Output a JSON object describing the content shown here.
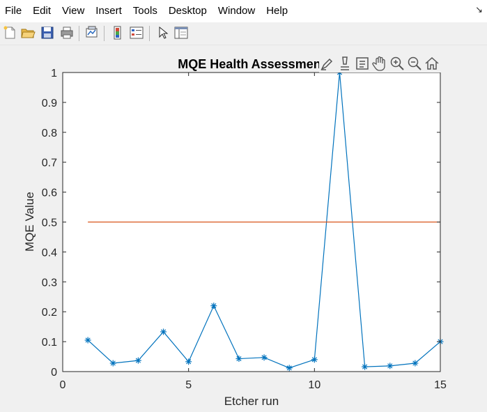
{
  "menubar": {
    "items": [
      "File",
      "Edit",
      "View",
      "Insert",
      "Tools",
      "Desktop",
      "Window",
      "Help"
    ]
  },
  "toolbar": {
    "icons": [
      "new-figure-icon",
      "open-file-icon",
      "save-icon",
      "print-icon",
      "link-plot-icon",
      "insert-colorbar-icon",
      "insert-legend-icon",
      "edit-plot-icon",
      "property-inspector-icon"
    ]
  },
  "axes_toolbar": {
    "icons": [
      "brush-icon",
      "data-tips-icon",
      "export-icon",
      "pan-icon",
      "zoom-in-icon",
      "zoom-out-icon",
      "home-icon"
    ]
  },
  "chart_data": {
    "type": "line",
    "title": "MQE Health Assessment",
    "xlabel": "Etcher run",
    "ylabel": "MQE Value",
    "xlim": [
      0,
      15
    ],
    "ylim": [
      0,
      1
    ],
    "xticks": [
      0,
      5,
      10,
      15
    ],
    "yticks": [
      0,
      0.1,
      0.2,
      0.3,
      0.4,
      0.5,
      0.6,
      0.7,
      0.8,
      0.9,
      1
    ],
    "ytick_labels": [
      "0",
      "0.1",
      "0.2",
      "0.3",
      "0.4",
      "0.5",
      "0.6",
      "0.7",
      "0.8",
      "0.9",
      "1"
    ],
    "grid": false,
    "series": [
      {
        "color": "#0072bd",
        "marker": "asterisk",
        "x": [
          1,
          2,
          3,
          4,
          5,
          6,
          7,
          8,
          9,
          10,
          11,
          12,
          13,
          14,
          15
        ],
        "y": [
          0.105,
          0.028,
          0.037,
          0.133,
          0.033,
          0.22,
          0.043,
          0.047,
          0.012,
          0.04,
          1.0,
          0.016,
          0.019,
          0.028,
          0.1
        ]
      },
      {
        "color": "#d95319",
        "marker": "none",
        "x": [
          1,
          15
        ],
        "y": [
          0.5,
          0.5
        ]
      }
    ]
  }
}
